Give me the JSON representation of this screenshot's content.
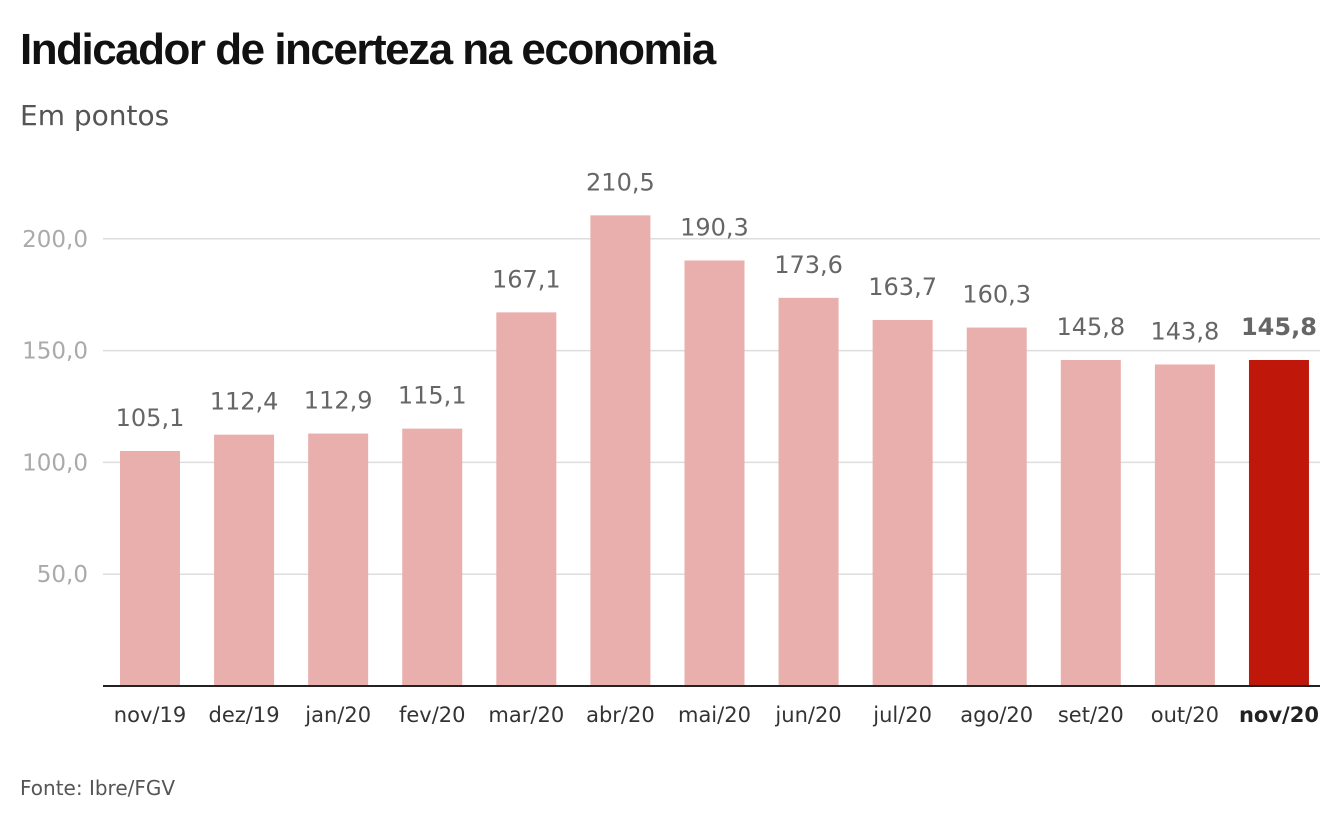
{
  "chart_data": {
    "type": "bar",
    "title": "Indicador de incerteza na economia",
    "subtitle": "Em pontos",
    "source": "Fonte: Ibre/FGV",
    "categories": [
      "nov/19",
      "dez/19",
      "jan/20",
      "fev/20",
      "mar/20",
      "abr/20",
      "mai/20",
      "jun/20",
      "jul/20",
      "ago/20",
      "set/20",
      "out/20",
      "nov/20"
    ],
    "values": [
      105.1,
      112.4,
      112.9,
      115.1,
      167.1,
      210.5,
      190.3,
      173.6,
      163.7,
      160.3,
      145.8,
      143.8,
      145.8
    ],
    "value_labels": [
      "105,1",
      "112,4",
      "112,9",
      "115,1",
      "167,1",
      "210,5",
      "190,3",
      "173,6",
      "163,7",
      "160,3",
      "145,8",
      "143,8",
      "145,8"
    ],
    "highlight_index": 12,
    "ylim": [
      0,
      200
    ],
    "yticks": [
      50,
      100,
      150,
      200
    ],
    "ytick_labels": [
      "50,0",
      "100,0",
      "150,0",
      "200,0"
    ],
    "grid": true,
    "colors": {
      "bar": "#e8afac",
      "highlight": "#c0170b",
      "grid": "#dddddd",
      "axis": "#222222"
    }
  }
}
